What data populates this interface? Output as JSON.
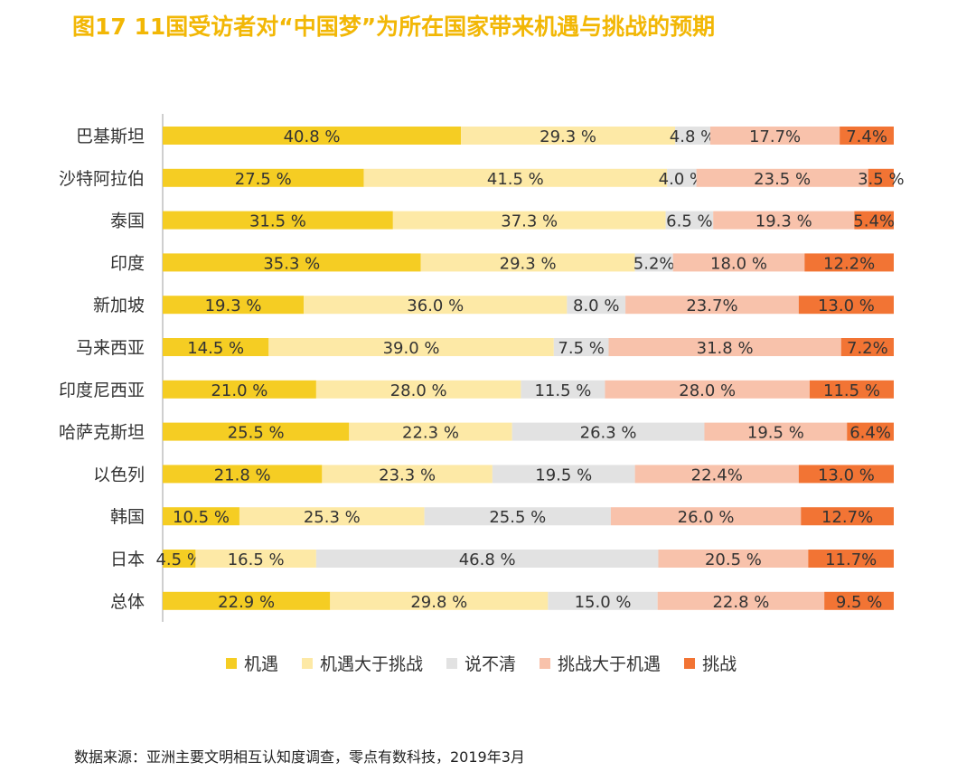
{
  "title": "图17  11国受访者对“中国梦”为所在国家带来机遇与挑战的预期",
  "source": "数据来源：亚洲主要文明相互认知度调查，零点有数科技，2019年3月",
  "chart_data": {
    "type": "bar",
    "stacked": true,
    "orientation": "horizontal",
    "normalized_percent": true,
    "xlim": [
      0,
      100
    ],
    "categories": [
      "巴基斯坦",
      "沙特阿拉伯",
      "泰国",
      "印度",
      "新加坡",
      "马来西亚",
      "印度尼西亚",
      "哈萨克斯坦",
      "以色列",
      "韩国",
      "日本",
      "总体"
    ],
    "series": [
      {
        "name": "机遇",
        "color": "#f5cd23",
        "values": [
          40.8,
          27.5,
          31.5,
          35.3,
          19.3,
          14.5,
          21.0,
          25.5,
          21.8,
          10.5,
          4.5,
          22.9
        ],
        "labels": [
          "40.8 %",
          "27.5 %",
          "31.5 %",
          "35.3 %",
          "19.3 %",
          "14.5 %",
          "21.0 %",
          "25.5 %",
          "21.8 %",
          "10.5 %",
          "4.5 %",
          "22.9 %"
        ]
      },
      {
        "name": "机遇大于挑战",
        "color": "#fde9a6",
        "values": [
          29.3,
          41.5,
          37.3,
          29.3,
          36.0,
          39.0,
          28.0,
          22.3,
          23.3,
          25.3,
          16.5,
          29.8
        ],
        "labels": [
          "29.3 %",
          "41.5 %",
          "37.3 %",
          "29.3 %",
          "36.0 %",
          "39.0 %",
          "28.0 %",
          "22.3 %",
          "23.3 %",
          "25.3 %",
          "16.5 %",
          "29.8 %"
        ]
      },
      {
        "name": "说不清",
        "color": "#e2e2e2",
        "values": [
          4.8,
          4.0,
          6.5,
          5.2,
          8.0,
          7.5,
          11.5,
          26.3,
          19.5,
          25.5,
          46.8,
          15.0
        ],
        "labels": [
          "4.8 %",
          "4.0 %",
          "6.5 %",
          "5.2%",
          "8.0 %",
          "7.5 %",
          "11.5 %",
          "26.3 %",
          "19.5 %",
          "25.5 %",
          "46.8 %",
          "15.0 %"
        ]
      },
      {
        "name": "挑战大于机遇",
        "color": "#f8c2ab",
        "values": [
          17.7,
          23.5,
          19.3,
          18.0,
          23.7,
          31.8,
          28.0,
          19.5,
          22.4,
          26.0,
          20.5,
          22.8
        ],
        "labels": [
          "17.7%",
          "23.5 %",
          "19.3 %",
          "18.0 %",
          "23.7%",
          "31.8 %",
          "28.0 %",
          "19.5 %",
          "22.4%",
          "26.0 %",
          "20.5 %",
          "22.8 %"
        ]
      },
      {
        "name": "挑战",
        "color": "#f27434",
        "values": [
          7.4,
          3.5,
          5.4,
          12.2,
          13.0,
          7.2,
          11.5,
          6.4,
          13.0,
          12.7,
          11.7,
          9.5
        ],
        "labels": [
          "7.4%",
          "3.5 %",
          "5.4%",
          "12.2%",
          "13.0 %",
          "7.2%",
          "11.5 %",
          "6.4%",
          "13.0 %",
          "12.7%",
          "11.7%",
          "9.5 %"
        ]
      }
    ],
    "legend": "bottom",
    "grid": false
  }
}
